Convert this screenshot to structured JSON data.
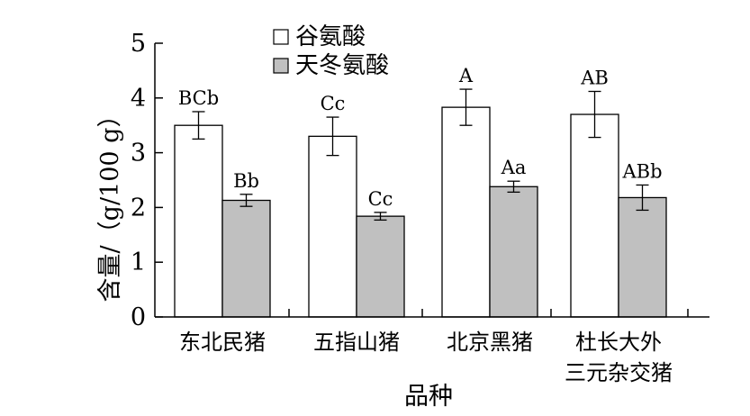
{
  "chart_data": {
    "type": "bar",
    "title": "",
    "xlabel": "品种",
    "ylabel": "含量/（g/100 g）",
    "ylim": [
      0,
      5
    ],
    "yticks": [
      "0",
      "1",
      "2",
      "3",
      "4",
      "5"
    ],
    "categories": [
      [
        "东北民猪"
      ],
      [
        "五指山猪"
      ],
      [
        "北京黑猪"
      ],
      [
        "杜长大外",
        "三元杂交猪"
      ]
    ],
    "legend_position": "top-left",
    "series": [
      {
        "name": "谷氨酸",
        "color": "#ffffff",
        "values": [
          3.5,
          3.3,
          3.83,
          3.7
        ],
        "errors": [
          0.25,
          0.35,
          0.33,
          0.42
        ],
        "labels": [
          "BCb",
          "Cc",
          "A",
          "AB"
        ]
      },
      {
        "name": "天冬氨酸",
        "color": "#c0c0c0",
        "values": [
          2.13,
          1.84,
          2.38,
          2.18
        ],
        "errors": [
          0.11,
          0.07,
          0.1,
          0.23
        ],
        "labels": [
          "Bb",
          "Cc",
          "Aa",
          "ABb"
        ]
      }
    ]
  }
}
